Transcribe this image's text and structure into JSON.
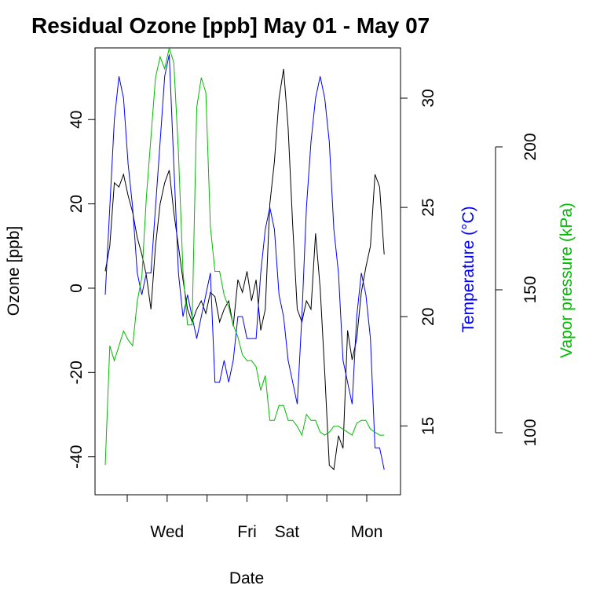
{
  "chart_data": {
    "type": "line",
    "title": "Residual Ozone [ppb] May 01 - May 07",
    "xlabel": "Date",
    "x_ticks": [
      "",
      "Wed",
      "",
      "Fri",
      "Sat",
      "",
      "Mon"
    ],
    "xlim": [
      0,
      6.2
    ],
    "axes": [
      {
        "id": "ozone",
        "label": "Ozone [ppb]",
        "side": "left",
        "ticks": [
          -40,
          -20,
          0,
          20,
          40
        ],
        "range": [
          -49,
          57
        ],
        "color": "#000000"
      },
      {
        "id": "temp",
        "label": "Temperature (°C)",
        "side": "right",
        "ticks": [
          15,
          20,
          25,
          30
        ],
        "range": [
          11.85,
          32.3
        ],
        "color": "#0000ff"
      },
      {
        "id": "vp",
        "label": "Vapor pressure (kPa)",
        "side": "right-outer",
        "ticks": [
          100,
          150,
          200
        ],
        "range": [
          75,
          225
        ],
        "color": "#00bb00"
      }
    ],
    "series": [
      {
        "axis": "ozone",
        "color": "#000000",
        "x": [
          0.0,
          0.1,
          0.2,
          0.3,
          0.4,
          0.5,
          0.6,
          0.7,
          0.8,
          0.9,
          1.0,
          1.1,
          1.2,
          1.3,
          1.4,
          1.5,
          1.6,
          1.7,
          1.8,
          1.9,
          2.0,
          2.1,
          2.2,
          2.3,
          2.4,
          2.5,
          2.6,
          2.7,
          2.8,
          2.9,
          3.0,
          3.1,
          3.2,
          3.3,
          3.4,
          3.5,
          3.6,
          3.7,
          3.8,
          3.9,
          4.0,
          4.1,
          4.2,
          4.3,
          4.4,
          4.5,
          4.6,
          4.7,
          4.8,
          4.9,
          5.0,
          5.1,
          5.2,
          5.3,
          5.4,
          5.5,
          5.6,
          5.7,
          5.8,
          5.9,
          6.0,
          6.1
        ],
        "values": [
          4,
          10,
          25,
          24,
          27,
          22,
          18,
          12,
          8,
          3,
          -5,
          10,
          20,
          25,
          28,
          18,
          10,
          2,
          -5,
          -8,
          -5,
          -3,
          -6,
          -1,
          -2,
          -8,
          -5,
          -3,
          -9,
          2,
          -1,
          4,
          -3,
          2,
          -10,
          -5,
          20,
          30,
          45,
          52,
          38,
          15,
          -5,
          -8,
          -3,
          -5,
          13,
          0,
          -20,
          -42,
          -43,
          -35,
          -38,
          -10,
          -17,
          -12,
          -1,
          5,
          10,
          27,
          24,
          8
        ]
      },
      {
        "axis": "temp",
        "color": "#0000ff",
        "x": [
          0.0,
          0.1,
          0.2,
          0.3,
          0.4,
          0.5,
          0.6,
          0.7,
          0.8,
          0.9,
          1.0,
          1.1,
          1.2,
          1.3,
          1.4,
          1.5,
          1.6,
          1.7,
          1.8,
          1.9,
          2.0,
          2.1,
          2.2,
          2.3,
          2.4,
          2.5,
          2.6,
          2.7,
          2.8,
          2.9,
          3.0,
          3.1,
          3.2,
          3.3,
          3.4,
          3.5,
          3.6,
          3.7,
          3.8,
          3.9,
          4.0,
          4.1,
          4.2,
          4.3,
          4.4,
          4.5,
          4.6,
          4.7,
          4.8,
          4.9,
          5.0,
          5.1,
          5.2,
          5.3,
          5.4,
          5.5,
          5.6,
          5.7,
          5.8,
          5.9,
          6.0,
          6.1
        ],
        "values": [
          21,
          25,
          29,
          31,
          30,
          27,
          25,
          22,
          21,
          22,
          22,
          25,
          28,
          31,
          32,
          27,
          22,
          20,
          21,
          20,
          19,
          20,
          21,
          22,
          17,
          17,
          18,
          17,
          18,
          20,
          20,
          19,
          19,
          19,
          22,
          24,
          25,
          24,
          21,
          20,
          18,
          17,
          16,
          20,
          25,
          28,
          30,
          31,
          30,
          28,
          24,
          22,
          18,
          17,
          16,
          20,
          22,
          21,
          19,
          14,
          14,
          13
        ]
      },
      {
        "axis": "vp",
        "color": "#00bb00",
        "x": [
          0.0,
          0.1,
          0.2,
          0.3,
          0.4,
          0.5,
          0.6,
          0.7,
          0.8,
          0.9,
          1.0,
          1.1,
          1.2,
          1.3,
          1.4,
          1.5,
          1.6,
          1.7,
          1.8,
          1.9,
          2.0,
          2.1,
          2.2,
          2.3,
          2.4,
          2.5,
          2.6,
          2.7,
          2.8,
          2.9,
          3.0,
          3.1,
          3.2,
          3.3,
          3.4,
          3.5,
          3.6,
          3.7,
          3.8,
          3.9,
          4.0,
          4.1,
          4.2,
          4.3,
          4.4,
          4.5,
          4.6,
          4.7,
          4.8,
          4.9,
          5.0,
          5.1,
          5.2,
          5.3,
          5.4,
          5.5,
          5.6,
          5.7,
          5.8,
          5.9,
          6.0,
          6.1
        ],
        "values": [
          85,
          125,
          120,
          125,
          130,
          127,
          125,
          140,
          148,
          175,
          195,
          215,
          222,
          218,
          225,
          220,
          190,
          150,
          132,
          132,
          205,
          215,
          210,
          165,
          150,
          150,
          142,
          138,
          132,
          128,
          122,
          120,
          120,
          118,
          110,
          115,
          100,
          100,
          105,
          105,
          100,
          100,
          98,
          95,
          102,
          100,
          100,
          96,
          95,
          96,
          98,
          98,
          97,
          96,
          95,
          99,
          100,
          100,
          97,
          96,
          95,
          95
        ]
      }
    ]
  }
}
